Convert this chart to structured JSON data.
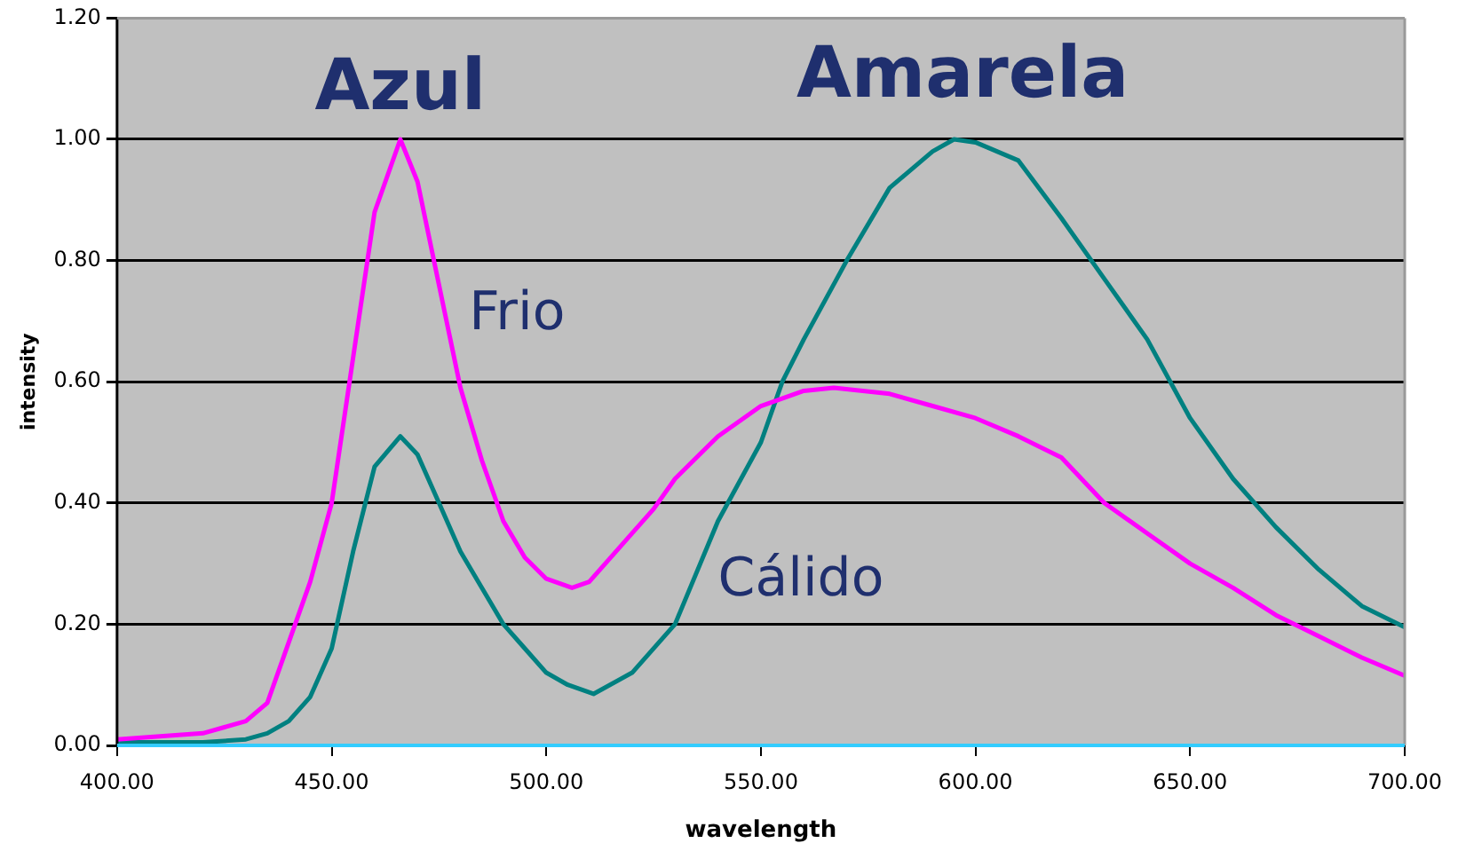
{
  "chart_data": {
    "type": "line",
    "xlabel": "wavelength",
    "ylabel": "intensity",
    "xlim": [
      400,
      700
    ],
    "xticks": [
      {
        "value": 400,
        "label": "400.00"
      },
      {
        "value": 450,
        "label": "450.00"
      },
      {
        "value": 500,
        "label": "500.00"
      },
      {
        "value": 550,
        "label": "550.00"
      },
      {
        "value": 600,
        "label": "600.00"
      },
      {
        "value": 650,
        "label": "650.00"
      },
      {
        "value": 700,
        "label": "700.00"
      }
    ],
    "ylim": [
      0,
      1.2
    ],
    "yticks": [
      {
        "value": 0,
        "label": "0.00"
      },
      {
        "value": 0.2,
        "label": "0.20"
      },
      {
        "value": 0.4,
        "label": "0.40"
      },
      {
        "value": 0.6,
        "label": "0.60"
      },
      {
        "value": 0.8,
        "label": "0.80"
      },
      {
        "value": 1,
        "label": "1.00"
      },
      {
        "value": 1.2,
        "label": "1.20"
      }
    ],
    "grid": "y",
    "legend": false,
    "marker": "none",
    "line_style": "solid",
    "series": [
      {
        "name": "Frio",
        "color": "#ff00ff",
        "x": [
          400,
          410,
          420,
          425,
          430,
          435,
          440,
          445,
          450,
          455,
          460,
          466,
          470,
          475,
          480,
          485,
          490,
          495,
          500,
          506,
          510,
          520,
          525,
          530,
          540,
          550,
          560,
          567,
          580,
          590,
          600,
          610,
          620,
          630,
          640,
          650,
          660,
          670,
          680,
          690,
          700
        ],
        "values": [
          0.01,
          0.015,
          0.02,
          0.03,
          0.04,
          0.07,
          0.17,
          0.27,
          0.4,
          0.64,
          0.88,
          1.0,
          0.93,
          0.76,
          0.59,
          0.47,
          0.37,
          0.31,
          0.275,
          0.26,
          0.27,
          0.35,
          0.39,
          0.44,
          0.51,
          0.56,
          0.585,
          0.59,
          0.58,
          0.56,
          0.54,
          0.51,
          0.475,
          0.4,
          0.35,
          0.3,
          0.26,
          0.215,
          0.18,
          0.145,
          0.115
        ]
      },
      {
        "name": "Cálido",
        "color": "#008080",
        "x": [
          400,
          420,
          430,
          435,
          440,
          445,
          450,
          455,
          460,
          466,
          470,
          475,
          480,
          485,
          490,
          495,
          500,
          505,
          511,
          520,
          530,
          540,
          550,
          555,
          560,
          570,
          580,
          590,
          595,
          600,
          610,
          620,
          630,
          640,
          650,
          660,
          670,
          680,
          690,
          700
        ],
        "values": [
          0.005,
          0.005,
          0.01,
          0.02,
          0.04,
          0.08,
          0.16,
          0.32,
          0.46,
          0.51,
          0.48,
          0.4,
          0.32,
          0.26,
          0.2,
          0.16,
          0.12,
          0.1,
          0.085,
          0.12,
          0.2,
          0.37,
          0.5,
          0.6,
          0.67,
          0.8,
          0.92,
          0.98,
          1.0,
          0.995,
          0.965,
          0.87,
          0.77,
          0.67,
          0.54,
          0.44,
          0.36,
          0.29,
          0.23,
          0.195
        ]
      }
    ],
    "annotations": [
      "Azul",
      "Amarela"
    ]
  }
}
